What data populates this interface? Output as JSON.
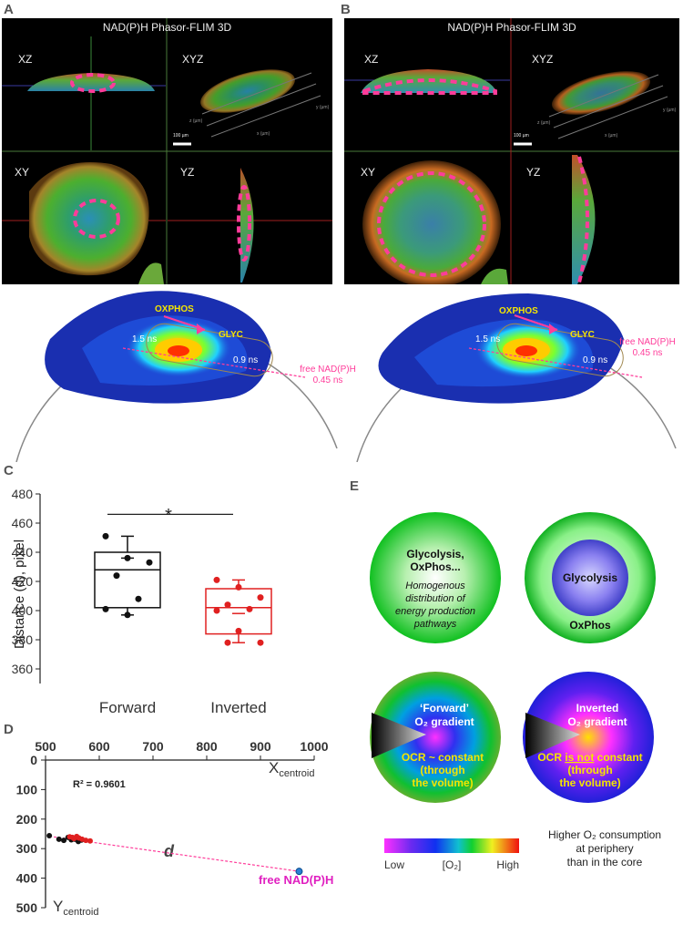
{
  "panels": {
    "A": "A",
    "B": "B",
    "C": "C",
    "D": "D",
    "E": "E"
  },
  "microscopy": {
    "title": "NAD(P)H Phasor-FLIM 3D",
    "views": {
      "xz": "XZ",
      "xyz": "XYZ",
      "xy": "XY",
      "yz": "YZ"
    },
    "axis_labels": {
      "x": "x (µm)",
      "y": "y (µm)",
      "z": "z (µm)"
    },
    "scalebar": "100 µm"
  },
  "phasor": {
    "oxphos": "OXPHOS",
    "glyc": "GLYC",
    "t1": "1.5 ns",
    "t2": "0.9 ns",
    "free_line1": "free NAD(P)H",
    "free_line2": "0.45 ns"
  },
  "panel_c": {
    "chart_data": {
      "type": "box",
      "ylabel": "Distance (d), pixel",
      "ylim": [
        350,
        480
      ],
      "yticks": [
        360,
        380,
        400,
        420,
        440,
        460,
        480
      ],
      "categories": [
        "Forward",
        "Inverted"
      ],
      "significance": "*",
      "series": [
        {
          "name": "Forward",
          "color": "#111111",
          "box": {
            "q1": 402,
            "median": 428,
            "q3": 440,
            "mean": 436,
            "whisker_low": 397,
            "whisker_high": 451
          },
          "points": [
            451,
            436,
            433,
            424,
            408,
            401,
            397
          ]
        },
        {
          "name": "Inverted",
          "color": "#e02020",
          "box": {
            "q1": 384,
            "median": 402,
            "q3": 415,
            "mean": 398,
            "whisker_low": 378,
            "whisker_high": 421
          },
          "points": [
            421,
            416,
            409,
            404,
            401,
            400,
            386,
            378,
            378
          ]
        }
      ]
    }
  },
  "panel_d": {
    "chart_data": {
      "type": "scatter",
      "xlabel_main": "X",
      "xlabel_sub": "centroid",
      "ylabel_main": "Y",
      "ylabel_sub": "centroid",
      "xlim": [
        500,
        1000
      ],
      "ylim": [
        0,
        500
      ],
      "xticks": [
        500,
        600,
        700,
        800,
        900,
        1000
      ],
      "yticks": [
        0,
        100,
        200,
        300,
        400,
        500
      ],
      "r2": "R² = 0.9601",
      "d_label": "d",
      "free_label": "free NAD(P)H",
      "series": [
        {
          "name": "Forward",
          "color": "#111111",
          "points": [
            [
              507,
              256
            ],
            [
              525,
              268
            ],
            [
              534,
              272
            ],
            [
              542,
              262
            ],
            [
              548,
              270
            ],
            [
              555,
              268
            ],
            [
              561,
              276
            ],
            [
              567,
              271
            ]
          ]
        },
        {
          "name": "Inverted",
          "color": "#e02020",
          "points": [
            [
              545,
              260
            ],
            [
              550,
              262
            ],
            [
              553,
              266
            ],
            [
              558,
              259
            ],
            [
              562,
              264
            ],
            [
              568,
              268
            ],
            [
              575,
              272
            ],
            [
              583,
              274
            ]
          ]
        },
        {
          "name": "free NAD(P)H",
          "color": "#2a7fd4",
          "points": [
            [
              972,
              377
            ]
          ]
        }
      ],
      "line": [
        [
          507,
          258
        ],
        [
          972,
          377
        ]
      ]
    }
  },
  "panel_e": {
    "s1_line1": "Glycolysis,",
    "s1_line2": "OxPhos...",
    "s1_italic": [
      "Homogenous",
      "distribution of",
      "energy production",
      "pathways"
    ],
    "s2_core": "Glycolysis",
    "s2_ring": "OxPhos",
    "s3_title1": "‘Forward’",
    "s3_title2": "O₂ gradient",
    "s3_ocr": [
      "OCR ~ constant",
      "(through",
      "the volume)"
    ],
    "s4_title1": "Inverted",
    "s4_title2": "O₂ gradient",
    "s4_ocr_a": "OCR ",
    "s4_ocr_b": "is not",
    "s4_ocr_c": " constant",
    "s4_ocr_rest": [
      "(through",
      "the volume)"
    ],
    "legend_low": "Low",
    "legend_mid": "[O₂]",
    "legend_high": "High",
    "note": [
      "Higher O₂ consumption",
      "at periphery",
      "than in the core"
    ]
  }
}
